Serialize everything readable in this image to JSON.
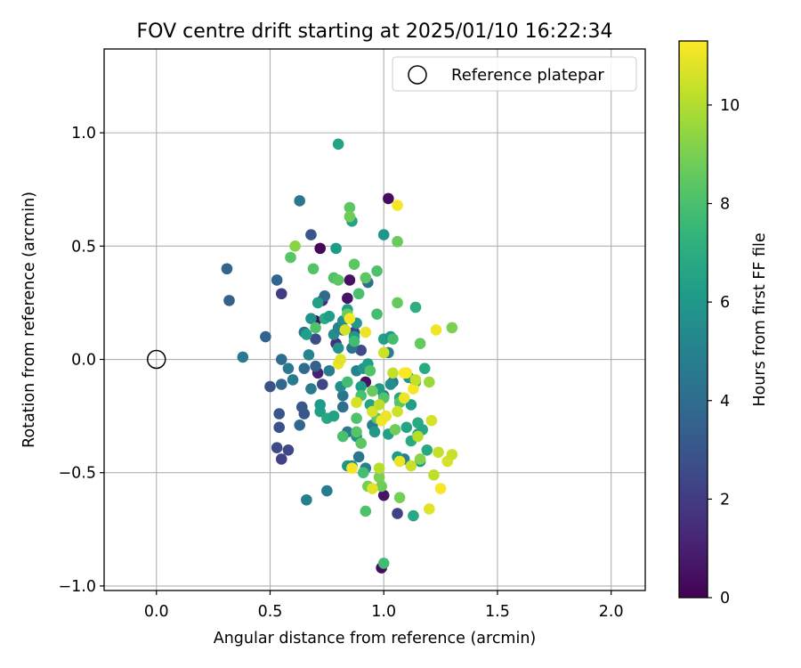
{
  "chart_data": {
    "type": "scatter",
    "title": "FOV centre drift starting at 2025/01/10 16:22:34",
    "xlabel": "Angular distance from reference (arcmin)",
    "ylabel": "Rotation from reference (arcmin)",
    "xlim": [
      -0.23,
      2.15
    ],
    "ylim": [
      -1.02,
      1.37
    ],
    "x_ticks": [
      0.0,
      0.5,
      1.0,
      1.5,
      2.0
    ],
    "x_tick_labels": [
      "0.0",
      "0.5",
      "1.0",
      "1.5",
      "2.0"
    ],
    "y_ticks": [
      -1.0,
      -0.5,
      0.0,
      0.5,
      1.0
    ],
    "y_tick_labels": [
      "−1.0",
      "−0.5",
      "0.0",
      "0.5",
      "1.0"
    ],
    "grid": true,
    "legend": {
      "position": "top-right",
      "entries": [
        "Reference platepar"
      ]
    },
    "reference_point": {
      "x": 0.0,
      "y": 0.0,
      "label": "Reference platepar"
    },
    "colorbar": {
      "label": "Hours from first FF file",
      "colormap": "viridis",
      "range": [
        0,
        11.3
      ],
      "ticks": [
        0,
        2,
        4,
        6,
        8,
        10
      ],
      "tick_labels": [
        "0",
        "2",
        "4",
        "6",
        "8",
        "10"
      ]
    },
    "points": [
      {
        "x": 0.99,
        "y": -0.92,
        "h": 0.4
      },
      {
        "x": 1.02,
        "y": 0.71,
        "h": 0.4
      },
      {
        "x": 0.72,
        "y": 0.49,
        "h": 0.2
      },
      {
        "x": 0.85,
        "y": 0.35,
        "h": 0.5
      },
      {
        "x": 0.84,
        "y": 0.27,
        "h": 0.6
      },
      {
        "x": 0.7,
        "y": 0.17,
        "h": 0.3
      },
      {
        "x": 0.92,
        "y": -0.1,
        "h": 0.5
      },
      {
        "x": 1.0,
        "y": -0.6,
        "h": 0.6
      },
      {
        "x": 0.71,
        "y": -0.06,
        "h": 1.0
      },
      {
        "x": 0.73,
        "y": 0.26,
        "h": 1.4
      },
      {
        "x": 0.79,
        "y": 0.07,
        "h": 1.5
      },
      {
        "x": 1.06,
        "y": -0.68,
        "h": 2.2
      },
      {
        "x": 0.55,
        "y": 0.29,
        "h": 2.0
      },
      {
        "x": 0.55,
        "y": -0.44,
        "h": 2.2
      },
      {
        "x": 0.53,
        "y": -0.39,
        "h": 2.5
      },
      {
        "x": 0.58,
        "y": -0.4,
        "h": 2.4
      },
      {
        "x": 0.5,
        "y": -0.12,
        "h": 2.8
      },
      {
        "x": 0.54,
        "y": -0.3,
        "h": 2.8
      },
      {
        "x": 0.54,
        "y": -0.24,
        "h": 3.0
      },
      {
        "x": 0.65,
        "y": -0.24,
        "h": 3.0
      },
      {
        "x": 0.68,
        "y": 0.55,
        "h": 3.1
      },
      {
        "x": 0.7,
        "y": 0.09,
        "h": 2.6
      },
      {
        "x": 0.64,
        "y": -0.21,
        "h": 3.1
      },
      {
        "x": 0.73,
        "y": -0.11,
        "h": 2.4
      },
      {
        "x": 0.82,
        "y": 0.13,
        "h": 2.9
      },
      {
        "x": 0.87,
        "y": 0.12,
        "h": 2.3
      },
      {
        "x": 0.9,
        "y": 0.04,
        "h": 2.6
      },
      {
        "x": 0.31,
        "y": 0.4,
        "h": 3.6
      },
      {
        "x": 0.32,
        "y": 0.26,
        "h": 3.5
      },
      {
        "x": 0.38,
        "y": 0.01,
        "h": 4.6
      },
      {
        "x": 0.48,
        "y": 0.1,
        "h": 3.6
      },
      {
        "x": 0.53,
        "y": 0.35,
        "h": 3.7
      },
      {
        "x": 0.55,
        "y": -0.11,
        "h": 3.8
      },
      {
        "x": 0.55,
        "y": 0.0,
        "h": 4.0
      },
      {
        "x": 0.58,
        "y": -0.04,
        "h": 4.6
      },
      {
        "x": 0.6,
        "y": -0.09,
        "h": 4.7
      },
      {
        "x": 0.63,
        "y": -0.29,
        "h": 3.8
      },
      {
        "x": 0.63,
        "y": 0.7,
        "h": 4.5
      },
      {
        "x": 0.65,
        "y": -0.04,
        "h": 4.0
      },
      {
        "x": 0.65,
        "y": 0.12,
        "h": 4.4
      },
      {
        "x": 0.66,
        "y": -0.62,
        "h": 4.9
      },
      {
        "x": 0.67,
        "y": 0.02,
        "h": 5.1
      },
      {
        "x": 0.68,
        "y": -0.13,
        "h": 4.7
      },
      {
        "x": 0.7,
        "y": -0.03,
        "h": 3.5
      },
      {
        "x": 0.74,
        "y": 0.28,
        "h": 3.9
      },
      {
        "x": 0.75,
        "y": -0.58,
        "h": 4.7
      },
      {
        "x": 0.76,
        "y": -0.05,
        "h": 4.8
      },
      {
        "x": 0.78,
        "y": 0.11,
        "h": 5.5
      },
      {
        "x": 0.8,
        "y": 0.14,
        "h": 5.0
      },
      {
        "x": 0.82,
        "y": -0.16,
        "h": 4.4
      },
      {
        "x": 0.82,
        "y": -0.21,
        "h": 4.2
      },
      {
        "x": 0.84,
        "y": -0.32,
        "h": 4.6
      },
      {
        "x": 0.86,
        "y": 0.05,
        "h": 4.3
      },
      {
        "x": 0.88,
        "y": -0.05,
        "h": 5.0
      },
      {
        "x": 0.89,
        "y": -0.43,
        "h": 4.4
      },
      {
        "x": 0.92,
        "y": -0.48,
        "h": 4.9
      },
      {
        "x": 0.93,
        "y": 0.34,
        "h": 4.1
      },
      {
        "x": 0.95,
        "y": -0.29,
        "h": 4.8
      },
      {
        "x": 1.0,
        "y": -0.16,
        "h": 4.7
      },
      {
        "x": 1.02,
        "y": 0.03,
        "h": 4.8
      },
      {
        "x": 1.04,
        "y": -0.1,
        "h": 4.4
      },
      {
        "x": 1.09,
        "y": -0.44,
        "h": 4.8
      },
      {
        "x": 0.8,
        "y": 0.95,
        "h": 6.6
      },
      {
        "x": 0.79,
        "y": 0.49,
        "h": 6.2
      },
      {
        "x": 0.86,
        "y": 0.61,
        "h": 6.6
      },
      {
        "x": 1.0,
        "y": 0.55,
        "h": 5.9
      },
      {
        "x": 0.66,
        "y": 0.11,
        "h": 6.4
      },
      {
        "x": 0.68,
        "y": 0.18,
        "h": 5.8
      },
      {
        "x": 0.71,
        "y": 0.25,
        "h": 6.4
      },
      {
        "x": 0.72,
        "y": -0.23,
        "h": 6.4
      },
      {
        "x": 0.72,
        "y": -0.2,
        "h": 6.2
      },
      {
        "x": 0.74,
        "y": 0.18,
        "h": 6.9
      },
      {
        "x": 0.76,
        "y": 0.19,
        "h": 6.3
      },
      {
        "x": 0.75,
        "y": -0.26,
        "h": 6.8
      },
      {
        "x": 0.78,
        "y": -0.25,
        "h": 6.5
      },
      {
        "x": 0.8,
        "y": 0.05,
        "h": 5.8
      },
      {
        "x": 0.81,
        "y": -0.12,
        "h": 5.5
      },
      {
        "x": 0.82,
        "y": 0.17,
        "h": 5.7
      },
      {
        "x": 0.84,
        "y": -0.47,
        "h": 5.9
      },
      {
        "x": 0.84,
        "y": 0.22,
        "h": 6.4
      },
      {
        "x": 0.86,
        "y": -0.47,
        "h": 5.6
      },
      {
        "x": 0.87,
        "y": 0.1,
        "h": 6.2
      },
      {
        "x": 0.88,
        "y": -0.34,
        "h": 5.8
      },
      {
        "x": 0.88,
        "y": 0.16,
        "h": 6.0
      },
      {
        "x": 0.9,
        "y": -0.12,
        "h": 6.3
      },
      {
        "x": 0.91,
        "y": -0.04,
        "h": 5.9
      },
      {
        "x": 0.93,
        "y": -0.02,
        "h": 6.3
      },
      {
        "x": 0.94,
        "y": -0.2,
        "h": 6.6
      },
      {
        "x": 0.96,
        "y": -0.32,
        "h": 6.0
      },
      {
        "x": 0.98,
        "y": -0.13,
        "h": 6.1
      },
      {
        "x": 1.0,
        "y": 0.09,
        "h": 6.4
      },
      {
        "x": 1.02,
        "y": -0.33,
        "h": 6.4
      },
      {
        "x": 1.03,
        "y": 0.1,
        "h": 5.9
      },
      {
        "x": 1.03,
        "y": -0.11,
        "h": 5.5
      },
      {
        "x": 1.06,
        "y": -0.43,
        "h": 6.2
      },
      {
        "x": 1.07,
        "y": -0.17,
        "h": 6.6
      },
      {
        "x": 1.1,
        "y": -0.3,
        "h": 6.6
      },
      {
        "x": 1.11,
        "y": -0.08,
        "h": 6.0
      },
      {
        "x": 1.12,
        "y": -0.36,
        "h": 6.9
      },
      {
        "x": 1.12,
        "y": -0.2,
        "h": 6.3
      },
      {
        "x": 1.13,
        "y": -0.69,
        "h": 6.8
      },
      {
        "x": 1.14,
        "y": 0.23,
        "h": 7.1
      },
      {
        "x": 1.15,
        "y": -0.28,
        "h": 6.9
      },
      {
        "x": 1.15,
        "y": -0.33,
        "h": 6.7
      },
      {
        "x": 1.16,
        "y": -0.45,
        "h": 6.2
      },
      {
        "x": 1.17,
        "y": -0.31,
        "h": 6.7
      },
      {
        "x": 1.18,
        "y": -0.04,
        "h": 6.9
      },
      {
        "x": 1.19,
        "y": -0.4,
        "h": 6.8
      },
      {
        "x": 0.59,
        "y": 0.45,
        "h": 8.3
      },
      {
        "x": 0.61,
        "y": 0.5,
        "h": 9.3
      },
      {
        "x": 0.69,
        "y": 0.4,
        "h": 8.2
      },
      {
        "x": 0.7,
        "y": 0.14,
        "h": 8.1
      },
      {
        "x": 0.78,
        "y": 0.36,
        "h": 8.1
      },
      {
        "x": 0.8,
        "y": 0.35,
        "h": 8.4
      },
      {
        "x": 0.82,
        "y": -0.34,
        "h": 8.0
      },
      {
        "x": 0.84,
        "y": 0.2,
        "h": 8.7
      },
      {
        "x": 0.84,
        "y": -0.1,
        "h": 7.8
      },
      {
        "x": 0.85,
        "y": 0.67,
        "h": 8.4
      },
      {
        "x": 0.85,
        "y": 0.63,
        "h": 8.8
      },
      {
        "x": 0.87,
        "y": 0.42,
        "h": 8.4
      },
      {
        "x": 0.87,
        "y": 0.08,
        "h": 7.8
      },
      {
        "x": 0.88,
        "y": -0.26,
        "h": 8.1
      },
      {
        "x": 0.88,
        "y": -0.32,
        "h": 8.3
      },
      {
        "x": 0.89,
        "y": 0.29,
        "h": 8.0
      },
      {
        "x": 0.9,
        "y": -0.16,
        "h": 8.0
      },
      {
        "x": 0.9,
        "y": -0.37,
        "h": 8.4
      },
      {
        "x": 0.91,
        "y": -0.5,
        "h": 7.9
      },
      {
        "x": 0.92,
        "y": 0.36,
        "h": 8.4
      },
      {
        "x": 0.92,
        "y": -0.67,
        "h": 8.1
      },
      {
        "x": 0.93,
        "y": -0.56,
        "h": 8.9
      },
      {
        "x": 0.94,
        "y": -0.05,
        "h": 8.2
      },
      {
        "x": 0.95,
        "y": -0.14,
        "h": 8.7
      },
      {
        "x": 0.97,
        "y": 0.2,
        "h": 7.9
      },
      {
        "x": 0.97,
        "y": 0.39,
        "h": 8.1
      },
      {
        "x": 0.97,
        "y": -0.26,
        "h": 8.4
      },
      {
        "x": 0.98,
        "y": -0.52,
        "h": 9.0
      },
      {
        "x": 0.99,
        "y": -0.56,
        "h": 8.8
      },
      {
        "x": 1.0,
        "y": -0.9,
        "h": 7.8
      },
      {
        "x": 1.0,
        "y": -0.17,
        "h": 8.2
      },
      {
        "x": 1.04,
        "y": 0.09,
        "h": 7.9
      },
      {
        "x": 1.05,
        "y": -0.31,
        "h": 8.8
      },
      {
        "x": 1.06,
        "y": 0.25,
        "h": 8.6
      },
      {
        "x": 1.06,
        "y": 0.52,
        "h": 8.7
      },
      {
        "x": 1.07,
        "y": -0.61,
        "h": 8.9
      },
      {
        "x": 1.07,
        "y": -0.19,
        "h": 8.3
      },
      {
        "x": 1.14,
        "y": -0.1,
        "h": 8.1
      },
      {
        "x": 1.16,
        "y": 0.07,
        "h": 8.6
      },
      {
        "x": 1.3,
        "y": 0.14,
        "h": 9.0
      },
      {
        "x": 1.16,
        "y": -0.44,
        "h": 9.2
      },
      {
        "x": 1.2,
        "y": -0.1,
        "h": 9.6
      },
      {
        "x": 0.8,
        "y": -0.02,
        "h": 11.0
      },
      {
        "x": 0.81,
        "y": 0.0,
        "h": 10.8
      },
      {
        "x": 0.83,
        "y": 0.13,
        "h": 10.6
      },
      {
        "x": 0.85,
        "y": 0.18,
        "h": 11.2
      },
      {
        "x": 0.86,
        "y": -0.48,
        "h": 11.2
      },
      {
        "x": 0.88,
        "y": -0.19,
        "h": 10.6
      },
      {
        "x": 0.92,
        "y": 0.12,
        "h": 11.0
      },
      {
        "x": 0.95,
        "y": -0.23,
        "h": 10.6
      },
      {
        "x": 0.98,
        "y": -0.48,
        "h": 10.1
      },
      {
        "x": 0.98,
        "y": -0.2,
        "h": 10.2
      },
      {
        "x": 0.99,
        "y": -0.27,
        "h": 11.1
      },
      {
        "x": 1.0,
        "y": 0.03,
        "h": 10.5
      },
      {
        "x": 1.01,
        "y": -0.25,
        "h": 11.0
      },
      {
        "x": 1.04,
        "y": -0.06,
        "h": 10.3
      },
      {
        "x": 1.06,
        "y": 0.68,
        "h": 11.2
      },
      {
        "x": 1.06,
        "y": -0.23,
        "h": 10.5
      },
      {
        "x": 1.07,
        "y": -0.45,
        "h": 11.0
      },
      {
        "x": 1.1,
        "y": -0.06,
        "h": 11.1
      },
      {
        "x": 1.12,
        "y": -0.47,
        "h": 10.4
      },
      {
        "x": 1.13,
        "y": -0.13,
        "h": 11.2
      },
      {
        "x": 1.14,
        "y": -0.09,
        "h": 10.3
      },
      {
        "x": 1.15,
        "y": -0.34,
        "h": 10.1
      },
      {
        "x": 1.2,
        "y": -0.66,
        "h": 10.8
      },
      {
        "x": 1.21,
        "y": -0.27,
        "h": 10.6
      },
      {
        "x": 1.22,
        "y": -0.51,
        "h": 10.2
      },
      {
        "x": 1.23,
        "y": 0.13,
        "h": 11.1
      },
      {
        "x": 1.24,
        "y": -0.41,
        "h": 10.3
      },
      {
        "x": 1.25,
        "y": -0.57,
        "h": 11.2
      },
      {
        "x": 1.28,
        "y": -0.45,
        "h": 10.6
      },
      {
        "x": 1.3,
        "y": -0.42,
        "h": 10.4
      },
      {
        "x": 1.09,
        "y": -0.06,
        "h": 11.3
      },
      {
        "x": 1.09,
        "y": -0.17,
        "h": 11.0
      },
      {
        "x": 0.95,
        "y": -0.57,
        "h": 10.8
      }
    ]
  }
}
